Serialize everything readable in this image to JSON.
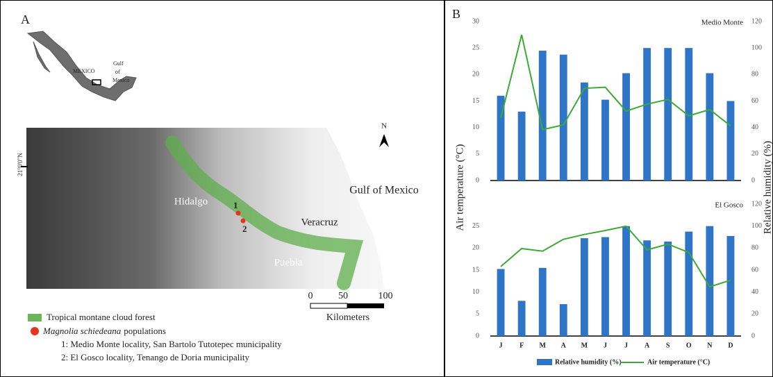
{
  "panel_a": {
    "label": "A",
    "inset": {
      "country": "MEXICO",
      "gulf": [
        "Gulf",
        "of",
        "Mexico"
      ]
    },
    "map": {
      "latitude": "21°0'0\"N",
      "north": "N",
      "hidalgo": "Hidalgo",
      "veracruz": "Veracruz",
      "puebla": "Puebla",
      "gulf": "Gulf of Mexico",
      "site_1": "1",
      "site_2": "2"
    },
    "scale": {
      "ticks": [
        "0",
        "50",
        "100"
      ],
      "unit": "Kilometers"
    },
    "legend": {
      "forest": "Tropical montane cloud forest",
      "species": "Magnolia schiedeana",
      "species_suffix": "populations",
      "sites": [
        "1: Medio Monte locality, San Bartolo Tutotepec municipality",
        "2: El Gosco locality, Tenango de Doria municipality"
      ]
    }
  },
  "panel_b": {
    "label": "B"
  },
  "chart_data": [
    {
      "type": "bar-line",
      "title": "Medio Monte",
      "ylabel": "Air temperature (°C)",
      "y2label": "Relative humidity (%)",
      "categories": [
        null,
        null,
        null,
        null,
        null,
        null,
        null,
        null,
        null,
        null,
        null,
        null
      ],
      "ylim": [
        0,
        30
      ],
      "yticks": [
        0,
        5,
        10,
        15,
        20,
        25,
        30
      ],
      "y2lim": [
        0,
        120
      ],
      "y2ticks": [
        0,
        20,
        40,
        60,
        80,
        100,
        120
      ],
      "series": [
        {
          "name": "Relative humidity (%)",
          "color": "#2e75c8",
          "axis": "y2",
          "values": [
            64,
            52,
            98,
            95,
            74,
            61,
            81,
            100,
            100,
            100,
            81,
            60
          ]
        },
        {
          "name": "Air temperature (°C)",
          "color": "#3aaa35",
          "axis": "y",
          "values": [
            11.8,
            27.5,
            9.6,
            10.5,
            17.4,
            17.6,
            13.1,
            14.4,
            15.3,
            12.2,
            13.4,
            10.3
          ]
        }
      ]
    },
    {
      "type": "bar-line",
      "title": "El Gosco",
      "categories": [
        "J",
        "F",
        "M",
        "A",
        "M",
        "J",
        "J",
        "A",
        "S",
        "O",
        "N",
        "D"
      ],
      "ylim": [
        0,
        30
      ],
      "yticks": [
        0,
        5,
        10,
        15,
        20,
        25
      ],
      "y2lim": [
        0,
        120
      ],
      "y2ticks": [
        0,
        20,
        40,
        60,
        80,
        100,
        120
      ],
      "series": [
        {
          "color": "#2e75c8",
          "axis": "y2",
          "values": [
            61,
            32,
            62,
            29,
            89,
            90,
            100,
            87,
            86,
            95,
            100,
            91
          ]
        },
        {
          "color": "#3aaa35",
          "axis": "y",
          "values": [
            15.8,
            19.9,
            19.3,
            22,
            23.1,
            24,
            25,
            19.6,
            20.9,
            19,
            11.2,
            12.7
          ]
        }
      ]
    }
  ]
}
